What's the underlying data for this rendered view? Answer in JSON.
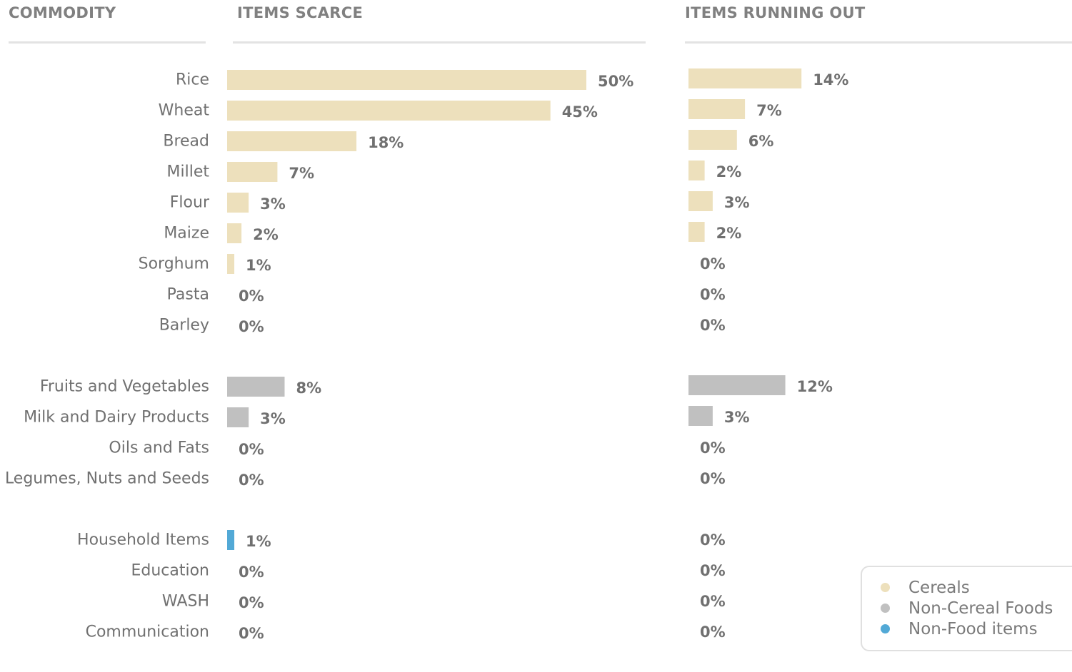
{
  "headers": {
    "commodity": "COMMODITY",
    "scarce": "ITEMS SCARCE",
    "running_out": "ITEMS RUNNING OUT"
  },
  "colors": {
    "Cereals": "#ede0bc",
    "Non-Cereal Foods": "#c0c0c0",
    "Non-Food items": "#52a9d6",
    "label_text": "#707070",
    "value_text": "#707070"
  },
  "legend": [
    {
      "label": "Cereals",
      "color": "#ede0bc"
    },
    {
      "label": "Non-Cereal Foods",
      "color": "#c0c0c0"
    },
    {
      "label": "Non-Food items",
      "color": "#52a9d6"
    }
  ],
  "chart_data": {
    "type": "bar",
    "orientation": "horizontal",
    "value_suffix": "%",
    "series_titles": [
      "ITEMS SCARCE",
      "ITEMS RUNNING OUT"
    ],
    "groups": [
      {
        "category": "Cereals",
        "rows": [
          {
            "name": "Rice",
            "scarce": 50,
            "running_out": 14
          },
          {
            "name": "Wheat",
            "scarce": 45,
            "running_out": 7
          },
          {
            "name": "Bread",
            "scarce": 18,
            "running_out": 6
          },
          {
            "name": "Millet",
            "scarce": 7,
            "running_out": 2
          },
          {
            "name": "Flour",
            "scarce": 3,
            "running_out": 3
          },
          {
            "name": "Maize",
            "scarce": 2,
            "running_out": 2
          },
          {
            "name": "Sorghum",
            "scarce": 1,
            "running_out": 0
          },
          {
            "name": "Pasta",
            "scarce": 0,
            "running_out": 0
          },
          {
            "name": "Barley",
            "scarce": 0,
            "running_out": 0
          }
        ]
      },
      {
        "category": "Non-Cereal Foods",
        "rows": [
          {
            "name": "Fruits and Vegetables",
            "scarce": 8,
            "running_out": 12
          },
          {
            "name": "Milk and Dairy Products",
            "scarce": 3,
            "running_out": 3
          },
          {
            "name": "Oils and Fats",
            "scarce": 0,
            "running_out": 0
          },
          {
            "name": "Legumes, Nuts and Seeds",
            "scarce": 0,
            "running_out": 0
          }
        ]
      },
      {
        "category": "Non-Food items",
        "rows": [
          {
            "name": "Household Items",
            "scarce": 1,
            "running_out": 0
          },
          {
            "name": "Education",
            "scarce": 0,
            "running_out": 0
          },
          {
            "name": "WASH",
            "scarce": 0,
            "running_out": 0
          },
          {
            "name": "Communication",
            "scarce": 0,
            "running_out": 0
          }
        ]
      }
    ]
  }
}
